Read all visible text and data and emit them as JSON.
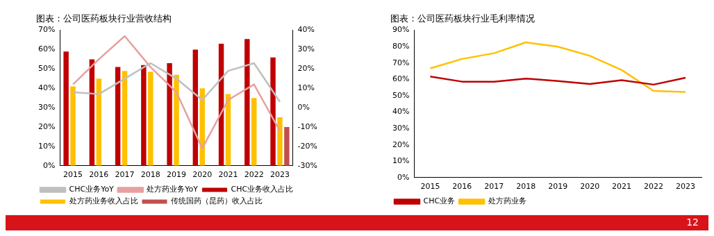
{
  "chart_data": [
    {
      "type": "bar",
      "title": "图表：公司医药板块行业营收结构",
      "categories": [
        "2015",
        "2016",
        "2017",
        "2018",
        "2019",
        "2020",
        "2021",
        "2022",
        "2023"
      ],
      "series": [
        {
          "name": "CHC业务收入占比",
          "color": "#c00000",
          "values": [
            59,
            55,
            51,
            52,
            53,
            60,
            63,
            65.5,
            56
          ]
        },
        {
          "name": "处方药业务收入占比",
          "color": "#ffc000",
          "values": [
            41,
            45,
            49,
            48.5,
            47,
            40,
            37,
            35,
            25
          ]
        },
        {
          "name": "传统国药（昆药）收入占比",
          "color": "#c0504d",
          "values": [
            null,
            null,
            null,
            null,
            null,
            null,
            null,
            null,
            20
          ]
        },
        {
          "name": "CHC业务YoY",
          "type": "line",
          "axis": "y2",
          "color": "#bfbfbf",
          "values": [
            8,
            7,
            15,
            23,
            15,
            4,
            19,
            23,
            3
          ]
        },
        {
          "name": "处方药业务YoY",
          "type": "line",
          "axis": "y2",
          "color": "#e6a0a0",
          "values": [
            12,
            25,
            37,
            21,
            8,
            -21,
            4,
            12,
            -12
          ]
        }
      ],
      "ylim": [
        0,
        70
      ],
      "yticks": [
        {
          "value": 0,
          "label": "0%"
        },
        {
          "value": 10,
          "label": "10%"
        },
        {
          "value": 20,
          "label": "20%"
        },
        {
          "value": 30,
          "label": "30%"
        },
        {
          "value": 40,
          "label": "40%"
        },
        {
          "value": 50,
          "label": "50%"
        },
        {
          "value": 60,
          "label": "60%"
        },
        {
          "value": 70,
          "label": "70%"
        }
      ],
      "y2lim": [
        -30,
        40
      ],
      "y2ticks": [
        {
          "value": -30,
          "label": "-30%"
        },
        {
          "value": -20,
          "label": "-20%"
        },
        {
          "value": -10,
          "label": "-10%"
        },
        {
          "value": 0,
          "label": "0%"
        },
        {
          "value": 10,
          "label": "10%"
        },
        {
          "value": 20,
          "label": "20%"
        },
        {
          "value": 30,
          "label": "30%"
        },
        {
          "value": 40,
          "label": "40%"
        }
      ],
      "grid": false,
      "legend": "bottom",
      "marker": "none",
      "line_style": "solid"
    },
    {
      "type": "line",
      "title": "图表：公司医药板块行业毛利率情况",
      "categories": [
        "2015",
        "2016",
        "2017",
        "2018",
        "2019",
        "2020",
        "2021",
        "2022",
        "2023"
      ],
      "series": [
        {
          "name": "CHC业务",
          "color": "#c00000",
          "values": [
            61.7,
            58.6,
            58.6,
            60.5,
            59,
            57.2,
            59.5,
            56.8,
            61
          ]
        },
        {
          "name": "处方药业务",
          "color": "#ffc000",
          "values": [
            66.7,
            72.5,
            76,
            82.6,
            80,
            74.4,
            65.7,
            52.9,
            52.3
          ]
        }
      ],
      "ylim": [
        0,
        90
      ],
      "yticks": [
        {
          "value": 0,
          "label": "0%"
        },
        {
          "value": 10,
          "label": "10%"
        },
        {
          "value": 20,
          "label": "20%"
        },
        {
          "value": 30,
          "label": "30%"
        },
        {
          "value": 40,
          "label": "40%"
        },
        {
          "value": 50,
          "label": "50%"
        },
        {
          "value": 60,
          "label": "60%"
        },
        {
          "value": 70,
          "label": "70%"
        },
        {
          "value": 80,
          "label": "80%"
        },
        {
          "value": 90,
          "label": "90%"
        }
      ],
      "grid": false,
      "legend": "bottom",
      "marker": "none",
      "line_style": "solid",
      "annotations": [
        "12"
      ]
    }
  ]
}
